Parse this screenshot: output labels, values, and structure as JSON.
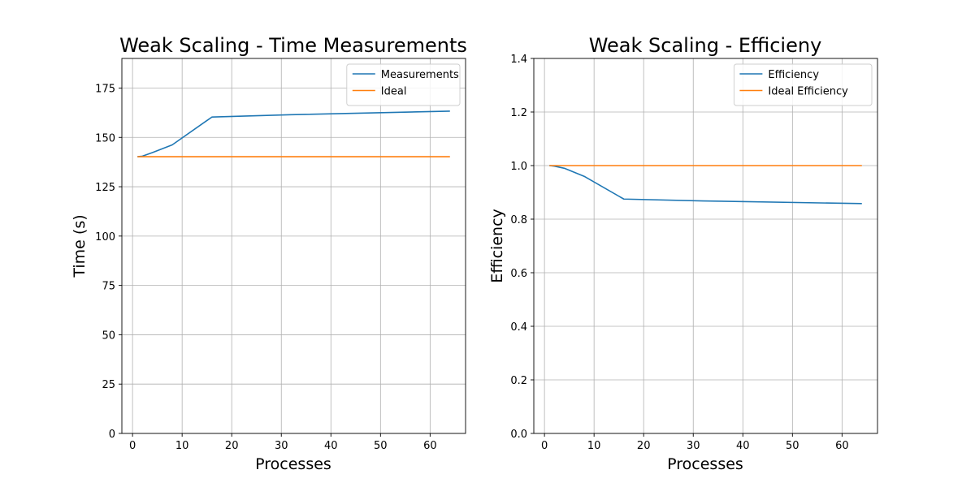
{
  "chart_data": [
    {
      "type": "line",
      "title": "Weak Scaling - Time Measurements",
      "xlabel": "Processes",
      "ylabel": "Time (s)",
      "xlim": [
        -2.15,
        67.15
      ],
      "ylim": [
        0,
        190
      ],
      "xticks": [
        0,
        10,
        20,
        30,
        40,
        50,
        60
      ],
      "yticks": [
        0,
        25,
        50,
        75,
        100,
        125,
        150,
        175
      ],
      "grid": true,
      "legend_position": "top-right",
      "series": [
        {
          "name": "Measurements",
          "color": "#1f77b4",
          "x": [
            1,
            2,
            4,
            8,
            16,
            32,
            64
          ],
          "y": [
            140.2,
            140.5,
            142.3,
            146.2,
            160.3,
            161.5,
            163.3
          ]
        },
        {
          "name": "Ideal",
          "color": "#ff7f0e",
          "x": [
            1,
            64
          ],
          "y": [
            140.2,
            140.2
          ]
        }
      ]
    },
    {
      "type": "line",
      "title": "Weak Scaling - Efficieny",
      "xlabel": "Processes",
      "ylabel": "Efficiency",
      "xlim": [
        -2.15,
        67.15
      ],
      "ylim": [
        0,
        1.4
      ],
      "xticks": [
        0,
        10,
        20,
        30,
        40,
        50,
        60
      ],
      "yticks": [
        0.0,
        0.2,
        0.4,
        0.6,
        0.8,
        1.0,
        1.2,
        1.4
      ],
      "ytick_labels": [
        "0.0",
        "0.2",
        "0.4",
        "0.6",
        "0.8",
        "1.0",
        "1.2",
        "1.4"
      ],
      "grid": true,
      "legend_position": "top-right",
      "series": [
        {
          "name": "Efficiency",
          "color": "#1f77b4",
          "x": [
            1,
            2,
            4,
            8,
            16,
            32,
            64
          ],
          "y": [
            1.0,
            0.998,
            0.99,
            0.96,
            0.875,
            0.868,
            0.858
          ]
        },
        {
          "name": "Ideal Efficiency",
          "color": "#ff7f0e",
          "x": [
            1,
            64
          ],
          "y": [
            1.0,
            1.0
          ]
        }
      ]
    }
  ]
}
